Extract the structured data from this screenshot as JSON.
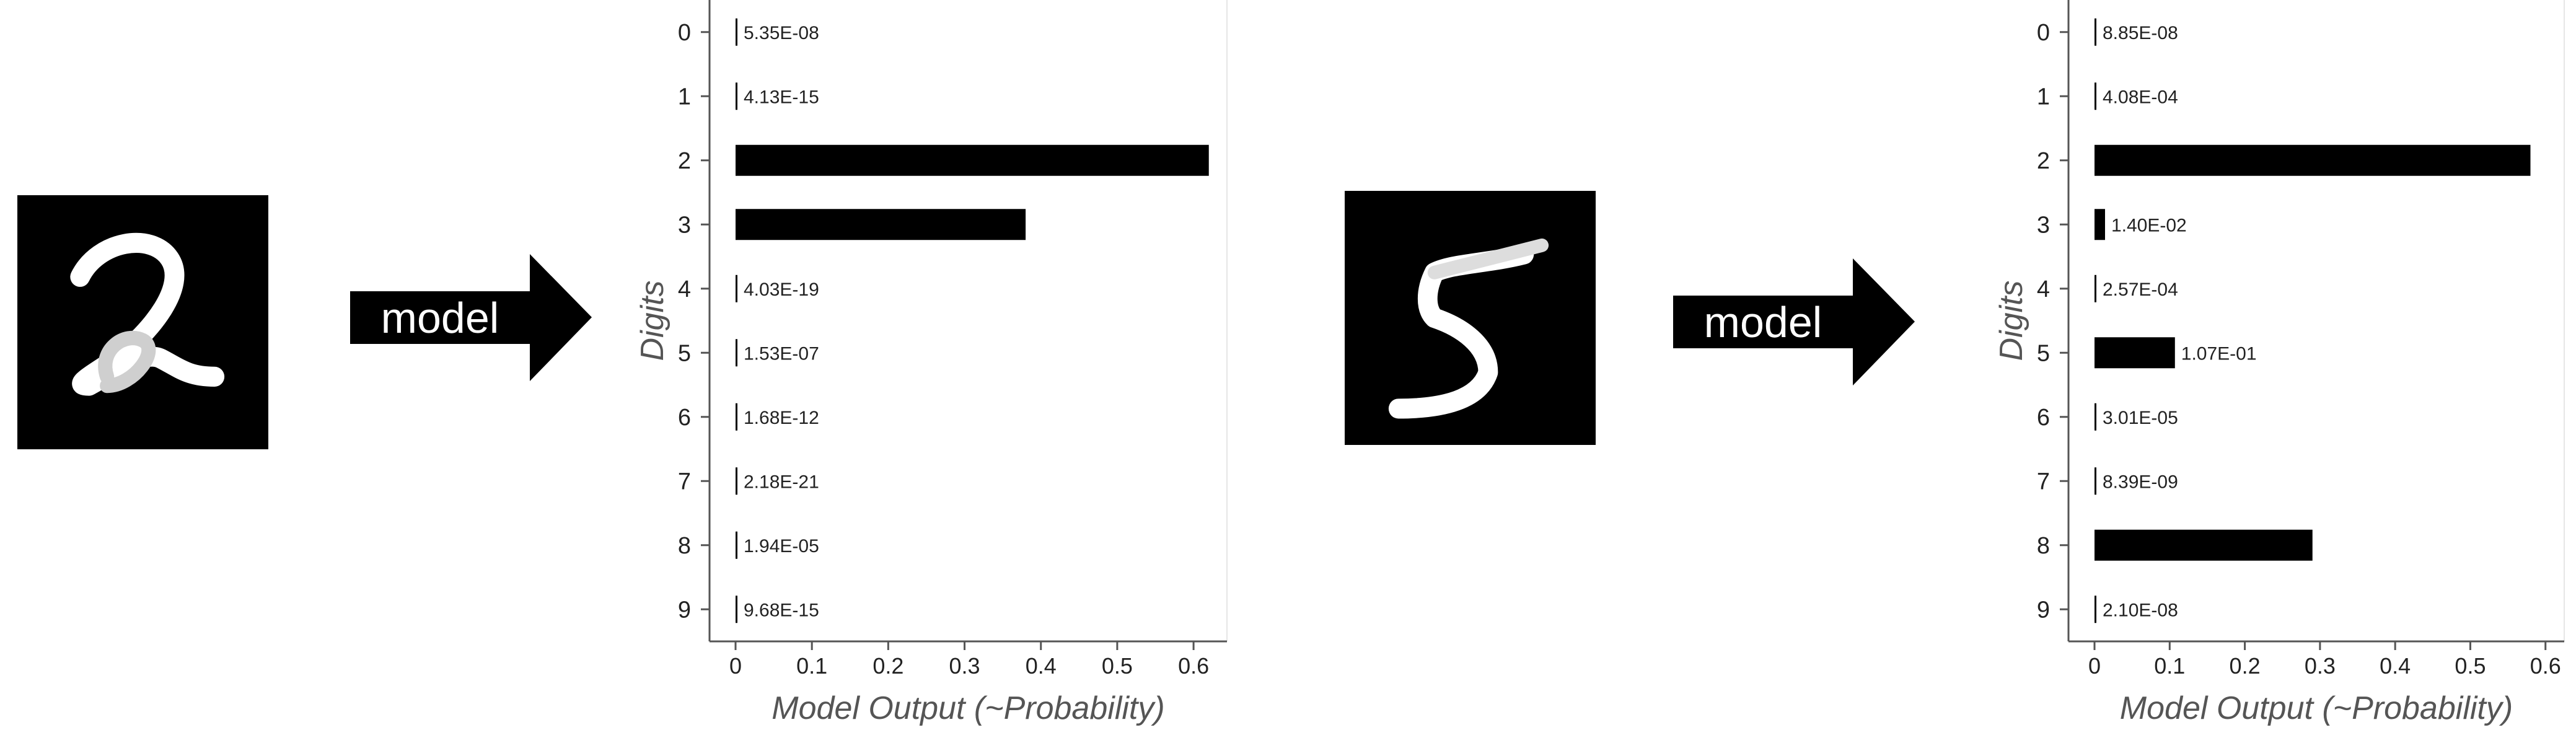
{
  "panels": [
    {
      "arrow_label": "model",
      "image_digit": "2",
      "chart_index": 0
    },
    {
      "arrow_label": "model",
      "image_digit": "5",
      "chart_index": 1
    }
  ],
  "colors": {
    "bar": "#000000",
    "axis": "#555555",
    "text": "#222222",
    "label": "#555555"
  },
  "chart_data": [
    {
      "type": "bar",
      "orientation": "horizontal",
      "categories": [
        "0",
        "1",
        "2",
        "3",
        "4",
        "5",
        "6",
        "7",
        "8",
        "9"
      ],
      "values": [
        5.35e-08,
        4.13e-15,
        0.62,
        0.38,
        4.03e-19,
        1.53e-07,
        1.68e-12,
        2.18e-21,
        1.94e-05,
        9.68e-15
      ],
      "data_labels": [
        "5.35E-08",
        "4.13E-15",
        "",
        "",
        "4.03E-19",
        "1.53E-07",
        "1.68E-12",
        "2.18E-21",
        "1.94E-05",
        "9.68E-15"
      ],
      "xticks": [
        "0",
        "0.1",
        "0.2",
        "0.3",
        "0.4",
        "0.5",
        "0.6"
      ],
      "xlim": [
        0,
        0.66
      ],
      "xlabel": "Model Output (~Probability)",
      "ylabel": "Digits",
      "grid": false
    },
    {
      "type": "bar",
      "orientation": "horizontal",
      "categories": [
        "0",
        "1",
        "2",
        "3",
        "4",
        "5",
        "6",
        "7",
        "8",
        "9"
      ],
      "values": [
        8.85e-08,
        0.000408,
        0.58,
        0.014,
        0.000257,
        0.107,
        3.01e-05,
        8.39e-09,
        0.29,
        2.1e-08
      ],
      "data_labels": [
        "8.85E-08",
        "4.08E-04",
        "",
        "1.40E-02",
        "2.57E-04",
        "1.07E-01",
        "3.01E-05",
        "8.39E-09",
        "",
        "2.10E-08"
      ],
      "xticks": [
        "0",
        "0.1",
        "0.2",
        "0.3",
        "0.4",
        "0.5",
        "0.6"
      ],
      "xlim": [
        0,
        0.62
      ],
      "xlabel": "Model Output (~Probability)",
      "ylabel": "Digits",
      "grid": false
    }
  ]
}
